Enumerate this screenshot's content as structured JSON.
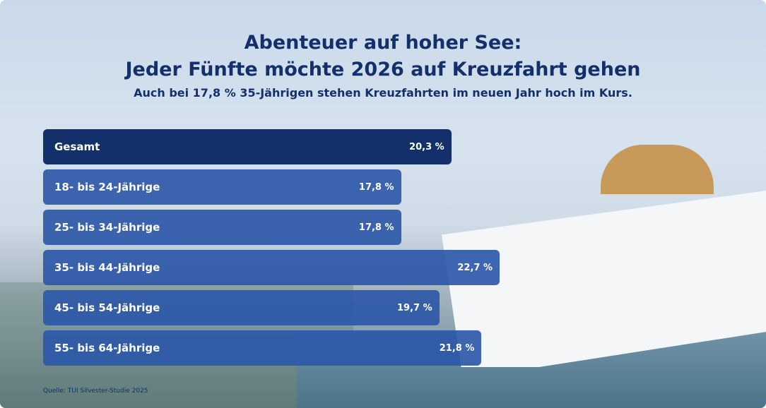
{
  "title_line1": "Abenteuer auf hoher See:",
  "title_line2": "Jeder Fünfte möchte 2026 auf Kreuzfahrt gehen",
  "subtitle": "Auch bei 17,8 % 35-Jährigen stehen Kreuzfahrten im neuen Jahr hoch im Kurs.",
  "source": "Quelle: TUI Silvester-Studie 2025",
  "colors": {
    "highlight": "#13306b",
    "bar": "#2e58a8",
    "text": "#13306b"
  },
  "chart_data": {
    "type": "bar",
    "orientation": "horizontal",
    "categories": [
      "Gesamt",
      "18- bis 24-Jährige",
      "25- bis 34-Jährige",
      "35- bis 44-Jährige",
      "45- bis 54-Jährige",
      "55- bis 64-Jährige"
    ],
    "values": [
      20.3,
      17.8,
      17.8,
      22.7,
      19.7,
      21.8
    ],
    "labels": [
      "20,3 %",
      "17,8 %",
      "17,8 %",
      "22,7 %",
      "19,7 %",
      "21,8 %"
    ],
    "unit": "%"
  }
}
